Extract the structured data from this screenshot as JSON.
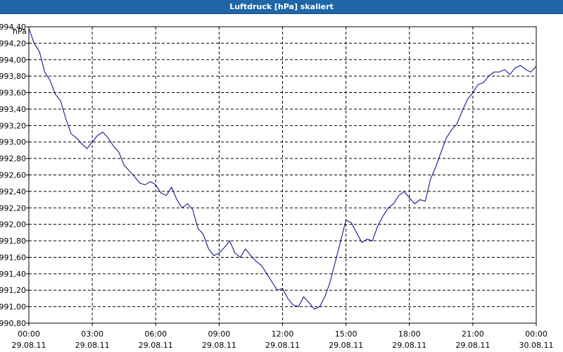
{
  "chart_data": {
    "type": "line",
    "title": "Luftdruck [hPa] skaliert",
    "ylabel": "hPa",
    "ylim": [
      990.8,
      994.4
    ],
    "yticks": [
      "990,80",
      "991,00",
      "991,20",
      "991,40",
      "991,60",
      "991,80",
      "992,00",
      "992,20",
      "992,40",
      "992,60",
      "992,80",
      "993,00",
      "993,20",
      "993,40",
      "993,60",
      "993,80",
      "994,00",
      "994,20",
      "994,40"
    ],
    "xlim": [
      0,
      24
    ],
    "xticks": [
      {
        "time": "00:00",
        "date": "29.08.11"
      },
      {
        "time": "03:00",
        "date": "29.08.11"
      },
      {
        "time": "06:00",
        "date": "29.08.11"
      },
      {
        "time": "09:00",
        "date": "29.08.11"
      },
      {
        "time": "12:00",
        "date": "29.08.11"
      },
      {
        "time": "15:00",
        "date": "29.08.11"
      },
      {
        "time": "18:00",
        "date": "29.08.11"
      },
      {
        "time": "21:00",
        "date": "29.08.11"
      },
      {
        "time": "00:00",
        "date": "30.08.11"
      }
    ],
    "grid": true,
    "series": [
      {
        "color": "#00008b",
        "x": [
          0.0,
          0.25,
          0.5,
          0.75,
          1.0,
          1.25,
          1.5,
          1.75,
          2.0,
          2.25,
          2.5,
          2.75,
          3.0,
          3.25,
          3.5,
          3.75,
          4.0,
          4.25,
          4.5,
          4.75,
          5.0,
          5.25,
          5.5,
          5.75,
          6.0,
          6.25,
          6.5,
          6.75,
          7.0,
          7.25,
          7.5,
          7.75,
          8.0,
          8.25,
          8.5,
          8.75,
          9.0,
          9.25,
          9.5,
          9.75,
          10.0,
          10.25,
          10.5,
          10.75,
          11.0,
          11.25,
          11.5,
          11.75,
          12.0,
          12.25,
          12.5,
          12.75,
          13.0,
          13.25,
          13.5,
          13.75,
          14.0,
          14.25,
          14.5,
          14.75,
          15.0,
          15.25,
          15.5,
          15.75,
          16.0,
          16.25,
          16.5,
          16.75,
          17.0,
          17.25,
          17.5,
          17.75,
          18.0,
          18.25,
          18.5,
          18.75,
          19.0,
          19.25,
          19.5,
          19.75,
          20.0,
          20.25,
          20.5,
          20.75,
          21.0,
          21.25,
          21.5,
          21.75,
          22.0,
          22.25,
          22.5,
          22.75,
          23.0,
          23.25,
          23.5,
          23.75,
          24.0
        ],
        "y": [
          994.38,
          994.2,
          994.1,
          993.85,
          993.75,
          993.58,
          993.5,
          993.28,
          993.1,
          993.05,
          992.98,
          992.92,
          993.0,
          993.08,
          993.12,
          993.05,
          992.95,
          992.88,
          992.72,
          992.65,
          992.58,
          992.5,
          992.48,
          992.52,
          992.48,
          992.38,
          992.35,
          992.45,
          992.3,
          992.2,
          992.25,
          992.18,
          991.95,
          991.88,
          991.7,
          991.62,
          991.65,
          991.72,
          991.8,
          991.65,
          991.6,
          991.7,
          991.62,
          991.55,
          991.5,
          991.4,
          991.3,
          991.2,
          991.22,
          991.1,
          991.02,
          991.0,
          991.12,
          991.05,
          990.97,
          991.0,
          991.12,
          991.3,
          991.55,
          991.8,
          992.05,
          992.02,
          991.9,
          991.78,
          991.82,
          991.8,
          991.98,
          992.1,
          992.2,
          992.25,
          992.35,
          992.4,
          992.32,
          992.25,
          992.3,
          992.28,
          992.55,
          992.7,
          992.88,
          993.05,
          993.15,
          993.22,
          993.38,
          993.52,
          993.6,
          993.7,
          993.72,
          993.8,
          993.85,
          993.85,
          993.88,
          993.82,
          993.9,
          993.93,
          993.88,
          993.85,
          993.92
        ]
      }
    ]
  }
}
